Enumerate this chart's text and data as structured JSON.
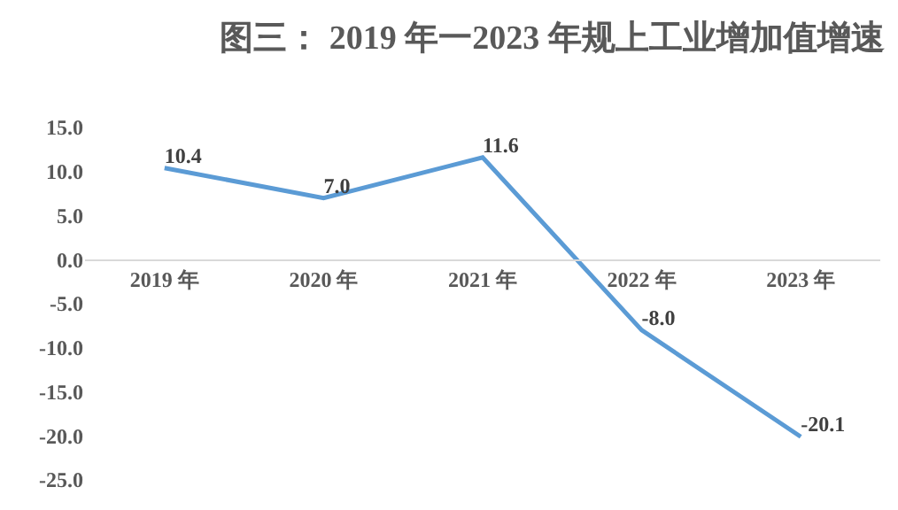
{
  "chart_data": {
    "type": "line",
    "title": "图三： 2019 年一2023 年规上工业增加值增速",
    "categories": [
      "2019 年",
      "2020 年",
      "2021 年",
      "2022 年",
      "2023 年"
    ],
    "series": [
      {
        "color": "#5b9bd5",
        "values": [
          10.4,
          7.0,
          11.6,
          -8.0,
          -20.1
        ],
        "value_labels": [
          "10.4",
          "7.0",
          "11.6",
          "-8.0",
          "-20.1"
        ]
      }
    ],
    "ylim": [
      -25,
      15
    ],
    "yticks": [
      {
        "value": -25,
        "label": "-25.0"
      },
      {
        "value": -20,
        "label": "-20.0"
      },
      {
        "value": -15,
        "label": "-15.0"
      },
      {
        "value": -10,
        "label": "-10.0"
      },
      {
        "value": -5,
        "label": "-5.0"
      },
      {
        "value": 0,
        "label": "0.0"
      },
      {
        "value": 5,
        "label": "5.0"
      },
      {
        "value": 10,
        "label": "10.0"
      },
      {
        "value": 15,
        "label": "15.0"
      }
    ],
    "marker": "none",
    "line_style": "solid"
  }
}
